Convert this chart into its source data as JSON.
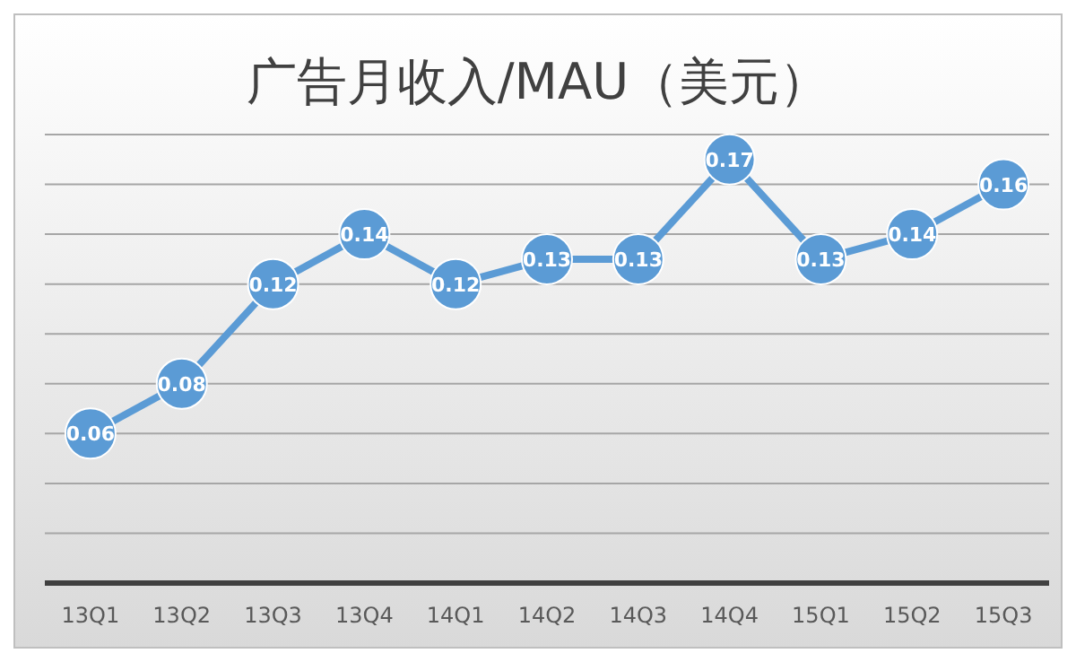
{
  "chart_data": {
    "type": "line",
    "title": "广告月收入/MAU（美元）",
    "categories": [
      "13Q1",
      "13Q2",
      "13Q3",
      "13Q4",
      "14Q1",
      "14Q2",
      "14Q3",
      "14Q4",
      "15Q1",
      "15Q2",
      "15Q3"
    ],
    "series": [
      {
        "color": "#5b9bd5",
        "values": [
          0.06,
          0.08,
          0.12,
          0.14,
          0.12,
          0.13,
          0.13,
          0.17,
          0.13,
          0.14,
          0.16
        ]
      }
    ],
    "ylim": [
      0,
      0.18
    ],
    "yticks": [
      {
        "value": 0,
        "label": null
      },
      {
        "value": 0.02,
        "label": null
      },
      {
        "value": 0.04,
        "label": null
      },
      {
        "value": 0.06,
        "label": null
      },
      {
        "value": 0.08,
        "label": null
      },
      {
        "value": 0.1,
        "label": null
      },
      {
        "value": 0.12,
        "label": null
      },
      {
        "value": 0.14,
        "label": null
      },
      {
        "value": 0.16,
        "label": null
      },
      {
        "value": 0.18,
        "label": null
      }
    ],
    "tick_labels": "x",
    "grid": "y",
    "marker": "circle",
    "line_style": "solid",
    "data_labels": true
  }
}
